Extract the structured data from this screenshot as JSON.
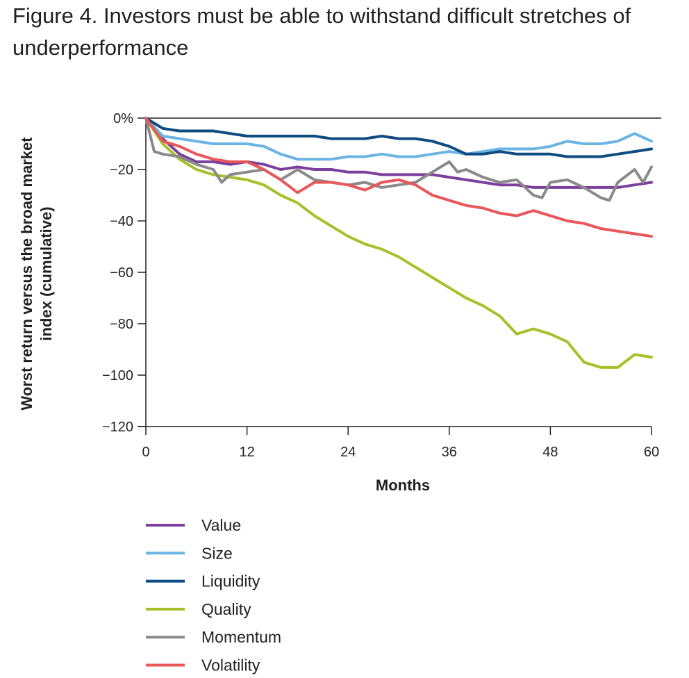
{
  "figure": {
    "title": "Figure 4. Investors must be able to withstand difficult stretches of underperformance"
  },
  "chart_data": {
    "type": "line",
    "xlabel": "Months",
    "ylabel": "Worst return versus the broad market index (cumulative)",
    "xlim": [
      0,
      60
    ],
    "ylim": [
      -120,
      0
    ],
    "xticks": [
      0,
      12,
      24,
      36,
      48,
      60
    ],
    "yticks": [
      0,
      -20,
      -40,
      -60,
      -80,
      -100,
      -120
    ],
    "ytick_labels": [
      "0%",
      "−20",
      "−40",
      "−60",
      "−80",
      "−100",
      "−120"
    ],
    "xtick_labels": [
      "0",
      "12",
      "24",
      "36",
      "48",
      "60"
    ],
    "grid": false,
    "legend_position": "bottom",
    "series": [
      {
        "name": "Value",
        "color": "#7b3f9e",
        "x": [
          0,
          2,
          4,
          6,
          8,
          10,
          12,
          14,
          16,
          18,
          20,
          22,
          24,
          26,
          28,
          30,
          32,
          34,
          36,
          38,
          40,
          42,
          44,
          46,
          48,
          50,
          52,
          54,
          56,
          58,
          60
        ],
        "y": [
          0,
          -8,
          -14,
          -17,
          -17,
          -18,
          -17,
          -18,
          -20,
          -19,
          -20,
          -20,
          -21,
          -21,
          -22,
          -22,
          -22,
          -22,
          -23,
          -24,
          -25,
          -26,
          -26,
          -27,
          -27,
          -27,
          -27,
          -27,
          -27,
          -26,
          -25
        ]
      },
      {
        "name": "Size",
        "color": "#6cb4e4",
        "x": [
          0,
          2,
          4,
          6,
          8,
          10,
          12,
          14,
          16,
          18,
          20,
          22,
          24,
          26,
          28,
          30,
          32,
          34,
          36,
          38,
          40,
          42,
          44,
          46,
          48,
          50,
          52,
          54,
          56,
          58,
          60
        ],
        "y": [
          0,
          -7,
          -8,
          -9,
          -10,
          -10,
          -10,
          -11,
          -14,
          -16,
          -16,
          -16,
          -15,
          -15,
          -14,
          -15,
          -15,
          -14,
          -13,
          -14,
          -13,
          -12,
          -12,
          -12,
          -11,
          -9,
          -10,
          -10,
          -9,
          -6,
          -9
        ]
      },
      {
        "name": "Liquidity",
        "color": "#0f4c81",
        "x": [
          0,
          2,
          4,
          6,
          8,
          10,
          12,
          14,
          16,
          18,
          20,
          22,
          24,
          26,
          28,
          30,
          32,
          34,
          36,
          38,
          40,
          42,
          44,
          46,
          48,
          50,
          52,
          54,
          56,
          58,
          60
        ],
        "y": [
          0,
          -4,
          -5,
          -5,
          -5,
          -6,
          -7,
          -7,
          -7,
          -7,
          -7,
          -8,
          -8,
          -8,
          -7,
          -8,
          -8,
          -9,
          -11,
          -14,
          -14,
          -13,
          -14,
          -14,
          -14,
          -15,
          -15,
          -15,
          -14,
          -13,
          -12
        ]
      },
      {
        "name": "Quality",
        "color": "#a8c02b",
        "x": [
          0,
          2,
          4,
          6,
          8,
          10,
          12,
          14,
          16,
          18,
          20,
          22,
          24,
          26,
          28,
          30,
          32,
          34,
          36,
          38,
          40,
          42,
          44,
          46,
          48,
          50,
          52,
          54,
          56,
          58,
          60
        ],
        "y": [
          0,
          -10,
          -16,
          -20,
          -22,
          -23,
          -24,
          -26,
          -30,
          -33,
          -38,
          -42,
          -46,
          -49,
          -51,
          -54,
          -58,
          -62,
          -66,
          -70,
          -73,
          -77,
          -84,
          -82,
          -84,
          -87,
          -95,
          -97,
          -97,
          -92,
          -93
        ]
      },
      {
        "name": "Momentum",
        "color": "#8a8a8a",
        "x": [
          0,
          1,
          2,
          4,
          6,
          8,
          9,
          10,
          12,
          14,
          16,
          18,
          20,
          22,
          24,
          26,
          28,
          30,
          32,
          34,
          36,
          37,
          38,
          40,
          42,
          44,
          46,
          47,
          48,
          50,
          52,
          54,
          55,
          56,
          58,
          59,
          60
        ],
        "y": [
          0,
          -13,
          -14,
          -15,
          -18,
          -20,
          -25,
          -22,
          -21,
          -20,
          -24,
          -20,
          -24,
          -25,
          -26,
          -25,
          -27,
          -26,
          -25,
          -21,
          -17,
          -21,
          -20,
          -23,
          -25,
          -24,
          -30,
          -31,
          -25,
          -24,
          -27,
          -31,
          -32,
          -25,
          -20,
          -25,
          -19
        ]
      },
      {
        "name": "Volatility",
        "color": "#e8575a",
        "x": [
          0,
          2,
          4,
          6,
          8,
          10,
          12,
          14,
          16,
          18,
          20,
          22,
          24,
          26,
          28,
          30,
          32,
          34,
          36,
          38,
          40,
          42,
          44,
          46,
          48,
          50,
          52,
          54,
          56,
          58,
          60
        ],
        "y": [
          0,
          -9,
          -11,
          -14,
          -16,
          -17,
          -17,
          -20,
          -24,
          -29,
          -25,
          -25,
          -26,
          -28,
          -25,
          -24,
          -26,
          -30,
          -32,
          -34,
          -35,
          -37,
          -38,
          -36,
          -38,
          -40,
          -41,
          -43,
          -44,
          -45,
          -46
        ]
      }
    ]
  }
}
